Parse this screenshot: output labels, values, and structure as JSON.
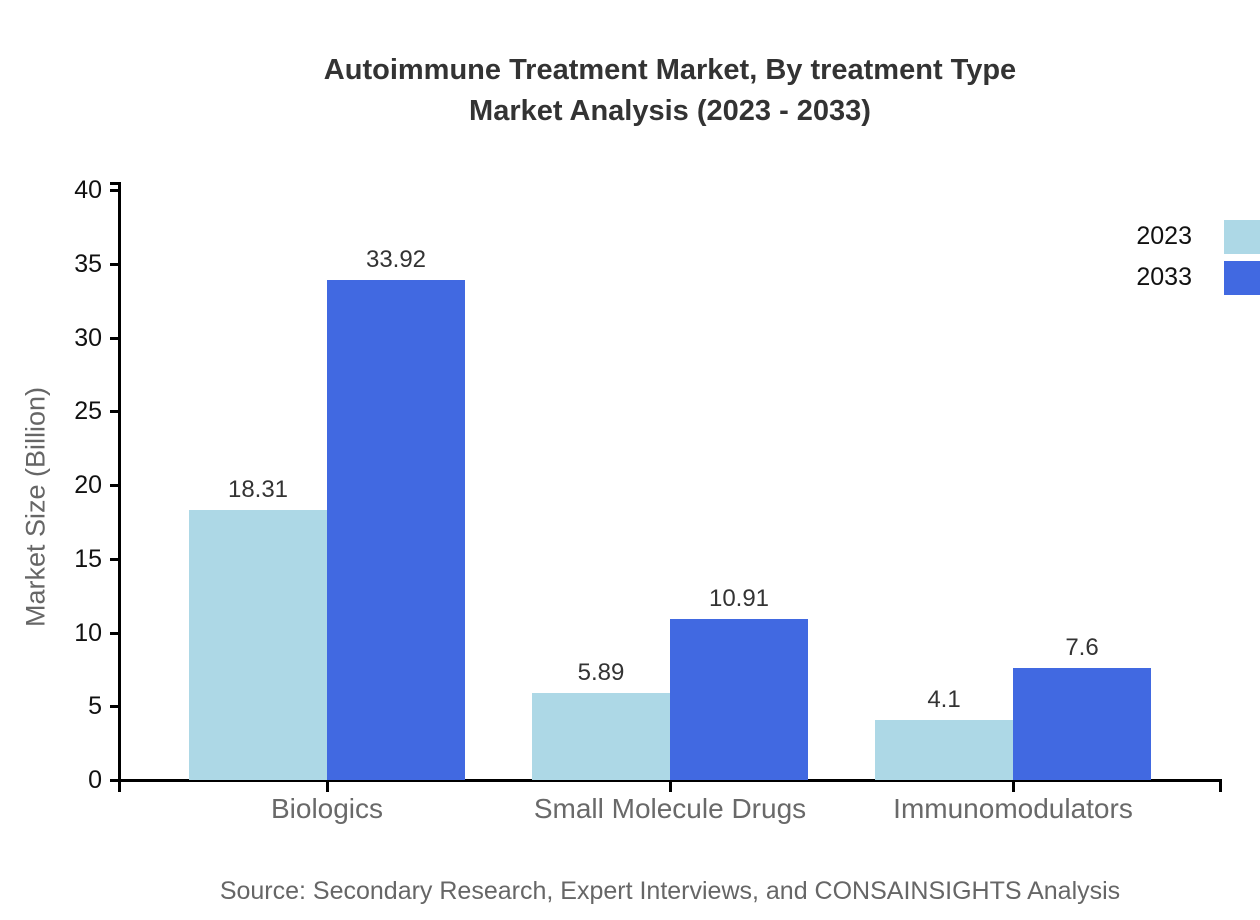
{
  "title": {
    "line1": "Autoimmune Treatment Market, By treatment Type",
    "line2": "Market Analysis (2023 - 2033)"
  },
  "source": "Source: Secondary Research, Expert Interviews, and CONSAINSIGHTS Analysis",
  "chart_data": {
    "type": "bar",
    "title": "Autoimmune Treatment Market, By treatment Type Market Analysis (2023 - 2033)",
    "categories": [
      "Biologics",
      "Small Molecule Drugs",
      "Immunomodulators"
    ],
    "series": [
      {
        "name": "2023",
        "color": "#add8e6",
        "values": [
          18.31,
          5.89,
          4.1
        ]
      },
      {
        "name": "2033",
        "color": "#4169e1",
        "values": [
          33.92,
          10.91,
          7.6
        ]
      }
    ],
    "xlabel": "",
    "ylabel": "Market Size (Billion)",
    "ylim": [
      0,
      40
    ],
    "yticks": [
      0,
      5,
      10,
      15,
      20,
      25,
      30,
      35,
      40
    ],
    "grid": false,
    "legend_position": "top-right",
    "colors": {
      "axis": "#000000",
      "tick_label": "#111111",
      "value_label": "#333333",
      "category_label": "#696969",
      "title": "#333333",
      "muted_text": "#666666",
      "background": "#ffffff"
    }
  }
}
